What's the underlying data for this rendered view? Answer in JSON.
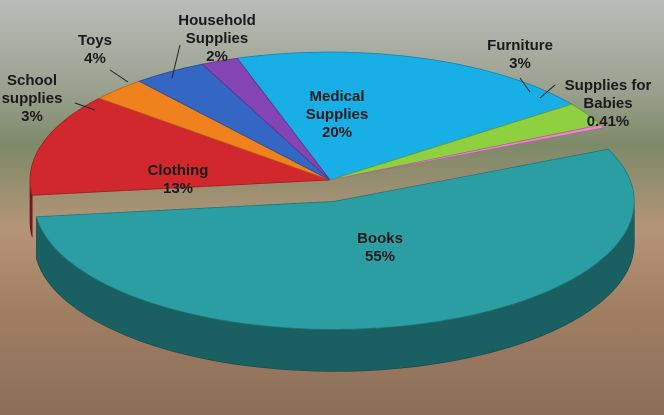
{
  "chart_data": {
    "type": "pie3d",
    "categories": [
      "Medical Supplies",
      "Furniture",
      "Supplies for Babies",
      "Books",
      "Clothing",
      "School supplies",
      "Toys",
      "Household Supplies"
    ],
    "values": [
      20,
      3,
      0.41,
      55,
      13,
      3,
      4,
      2
    ],
    "value_labels": [
      "20%",
      "3%",
      "0.41%",
      "55%",
      "13%",
      "3%",
      "4%",
      "2%"
    ],
    "colors": [
      "#18aee6",
      "#8fd040",
      "#e48ac4",
      "#2b9ea4",
      "#d0282c",
      "#f0821e",
      "#3466c4",
      "#8444b4"
    ]
  }
}
